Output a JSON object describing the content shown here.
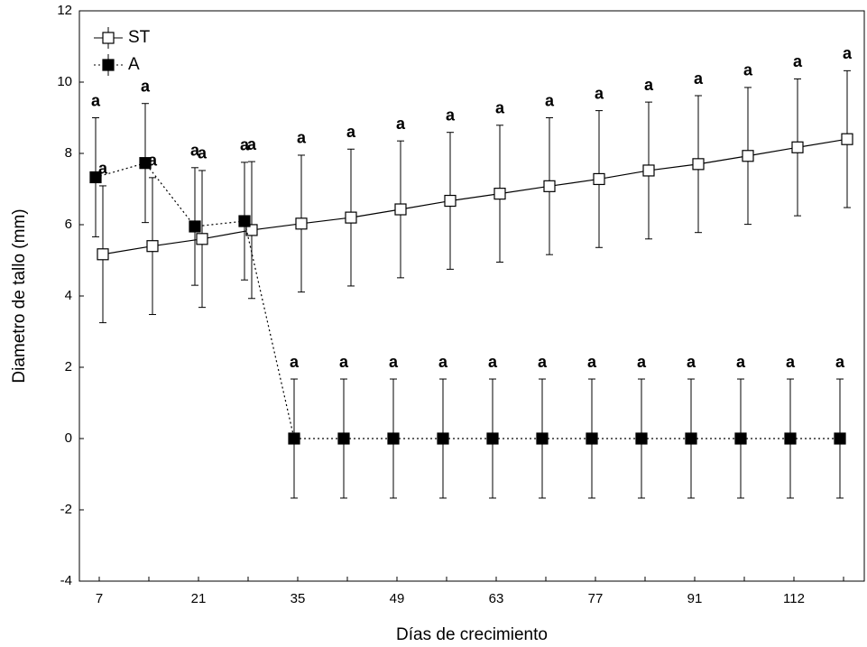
{
  "chart_data": {
    "type": "line",
    "xlabel": "Días de crecimiento",
    "ylabel": "Diametro de tallo (mm)",
    "categories": [
      "7",
      null,
      "21",
      null,
      "35",
      null,
      "49",
      null,
      "63",
      null,
      "77",
      null,
      "91",
      null,
      "112",
      null
    ],
    "ylim": [
      -4,
      12
    ],
    "yticks": [
      -4,
      -2,
      0,
      2,
      4,
      6,
      8,
      10,
      12
    ],
    "legend": "upper left",
    "series": [
      {
        "name": "ST",
        "color": "#000000",
        "marker": "open",
        "linestyle": "solid",
        "values": [
          5.17,
          5.4,
          5.6,
          5.85,
          6.03,
          6.2,
          6.43,
          6.67,
          6.87,
          7.08,
          7.28,
          7.52,
          7.7,
          7.93,
          8.17,
          8.4
        ],
        "errors": [
          1.92,
          1.92,
          1.92,
          1.92,
          1.92,
          1.92,
          1.92,
          1.92,
          1.92,
          1.92,
          1.92,
          1.92,
          1.92,
          1.92,
          1.92,
          1.92
        ],
        "letters": [
          "a",
          "a",
          "a",
          "a",
          "a",
          "a",
          "a",
          "a",
          "a",
          "a",
          "a",
          "a",
          "a",
          "a",
          "a",
          "a"
        ]
      },
      {
        "name": "A",
        "color": "#000000",
        "marker": "filled",
        "linestyle": "dotted",
        "values": [
          7.33,
          7.73,
          5.95,
          6.1,
          0,
          0,
          0,
          0,
          0,
          0,
          0,
          0,
          0,
          0,
          0,
          0
        ],
        "errors": [
          1.67,
          1.67,
          1.65,
          1.65,
          1.67,
          1.67,
          1.67,
          1.67,
          1.67,
          1.67,
          1.67,
          1.67,
          1.67,
          1.67,
          1.67,
          1.67
        ],
        "letters": [
          "a",
          "a",
          "a",
          "a",
          "a",
          "a",
          "a",
          "a",
          "a",
          "a",
          "a",
          "a",
          "a",
          "a",
          "a",
          "a"
        ]
      }
    ]
  }
}
